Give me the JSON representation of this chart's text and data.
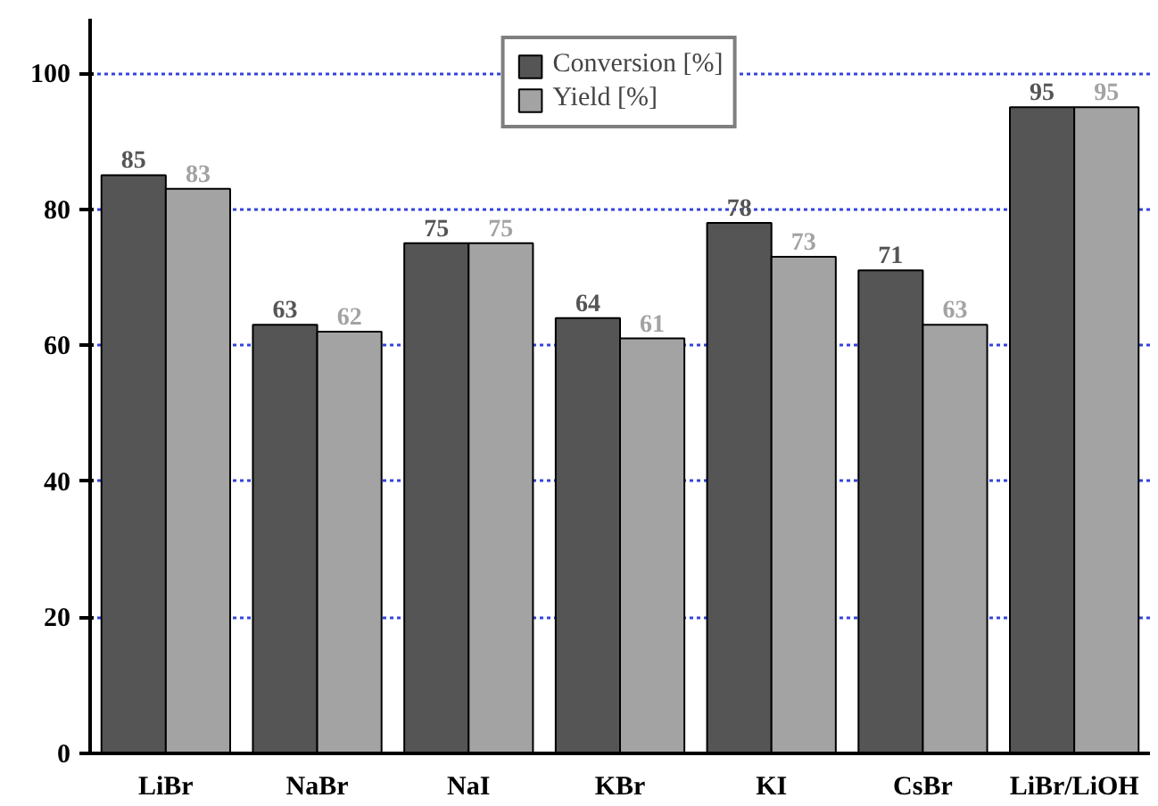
{
  "chart_data": {
    "type": "bar",
    "categories": [
      "LiBr",
      "NaBr",
      "NaI",
      "KBr",
      "KI",
      "CsBr",
      "LiBr/LiOH"
    ],
    "series": [
      {
        "name": "Conversion [%]",
        "color": "#555555",
        "values": [
          85,
          63,
          75,
          64,
          78,
          71,
          95
        ]
      },
      {
        "name": "Yield [%]",
        "color": "#a3a3a3",
        "values": [
          83,
          62,
          75,
          61,
          73,
          63,
          95
        ]
      }
    ],
    "ylim": [
      0,
      108
    ],
    "yticks": [
      0,
      20,
      40,
      60,
      80,
      100
    ],
    "grid": "y",
    "legend": "top",
    "data_labels": true
  }
}
